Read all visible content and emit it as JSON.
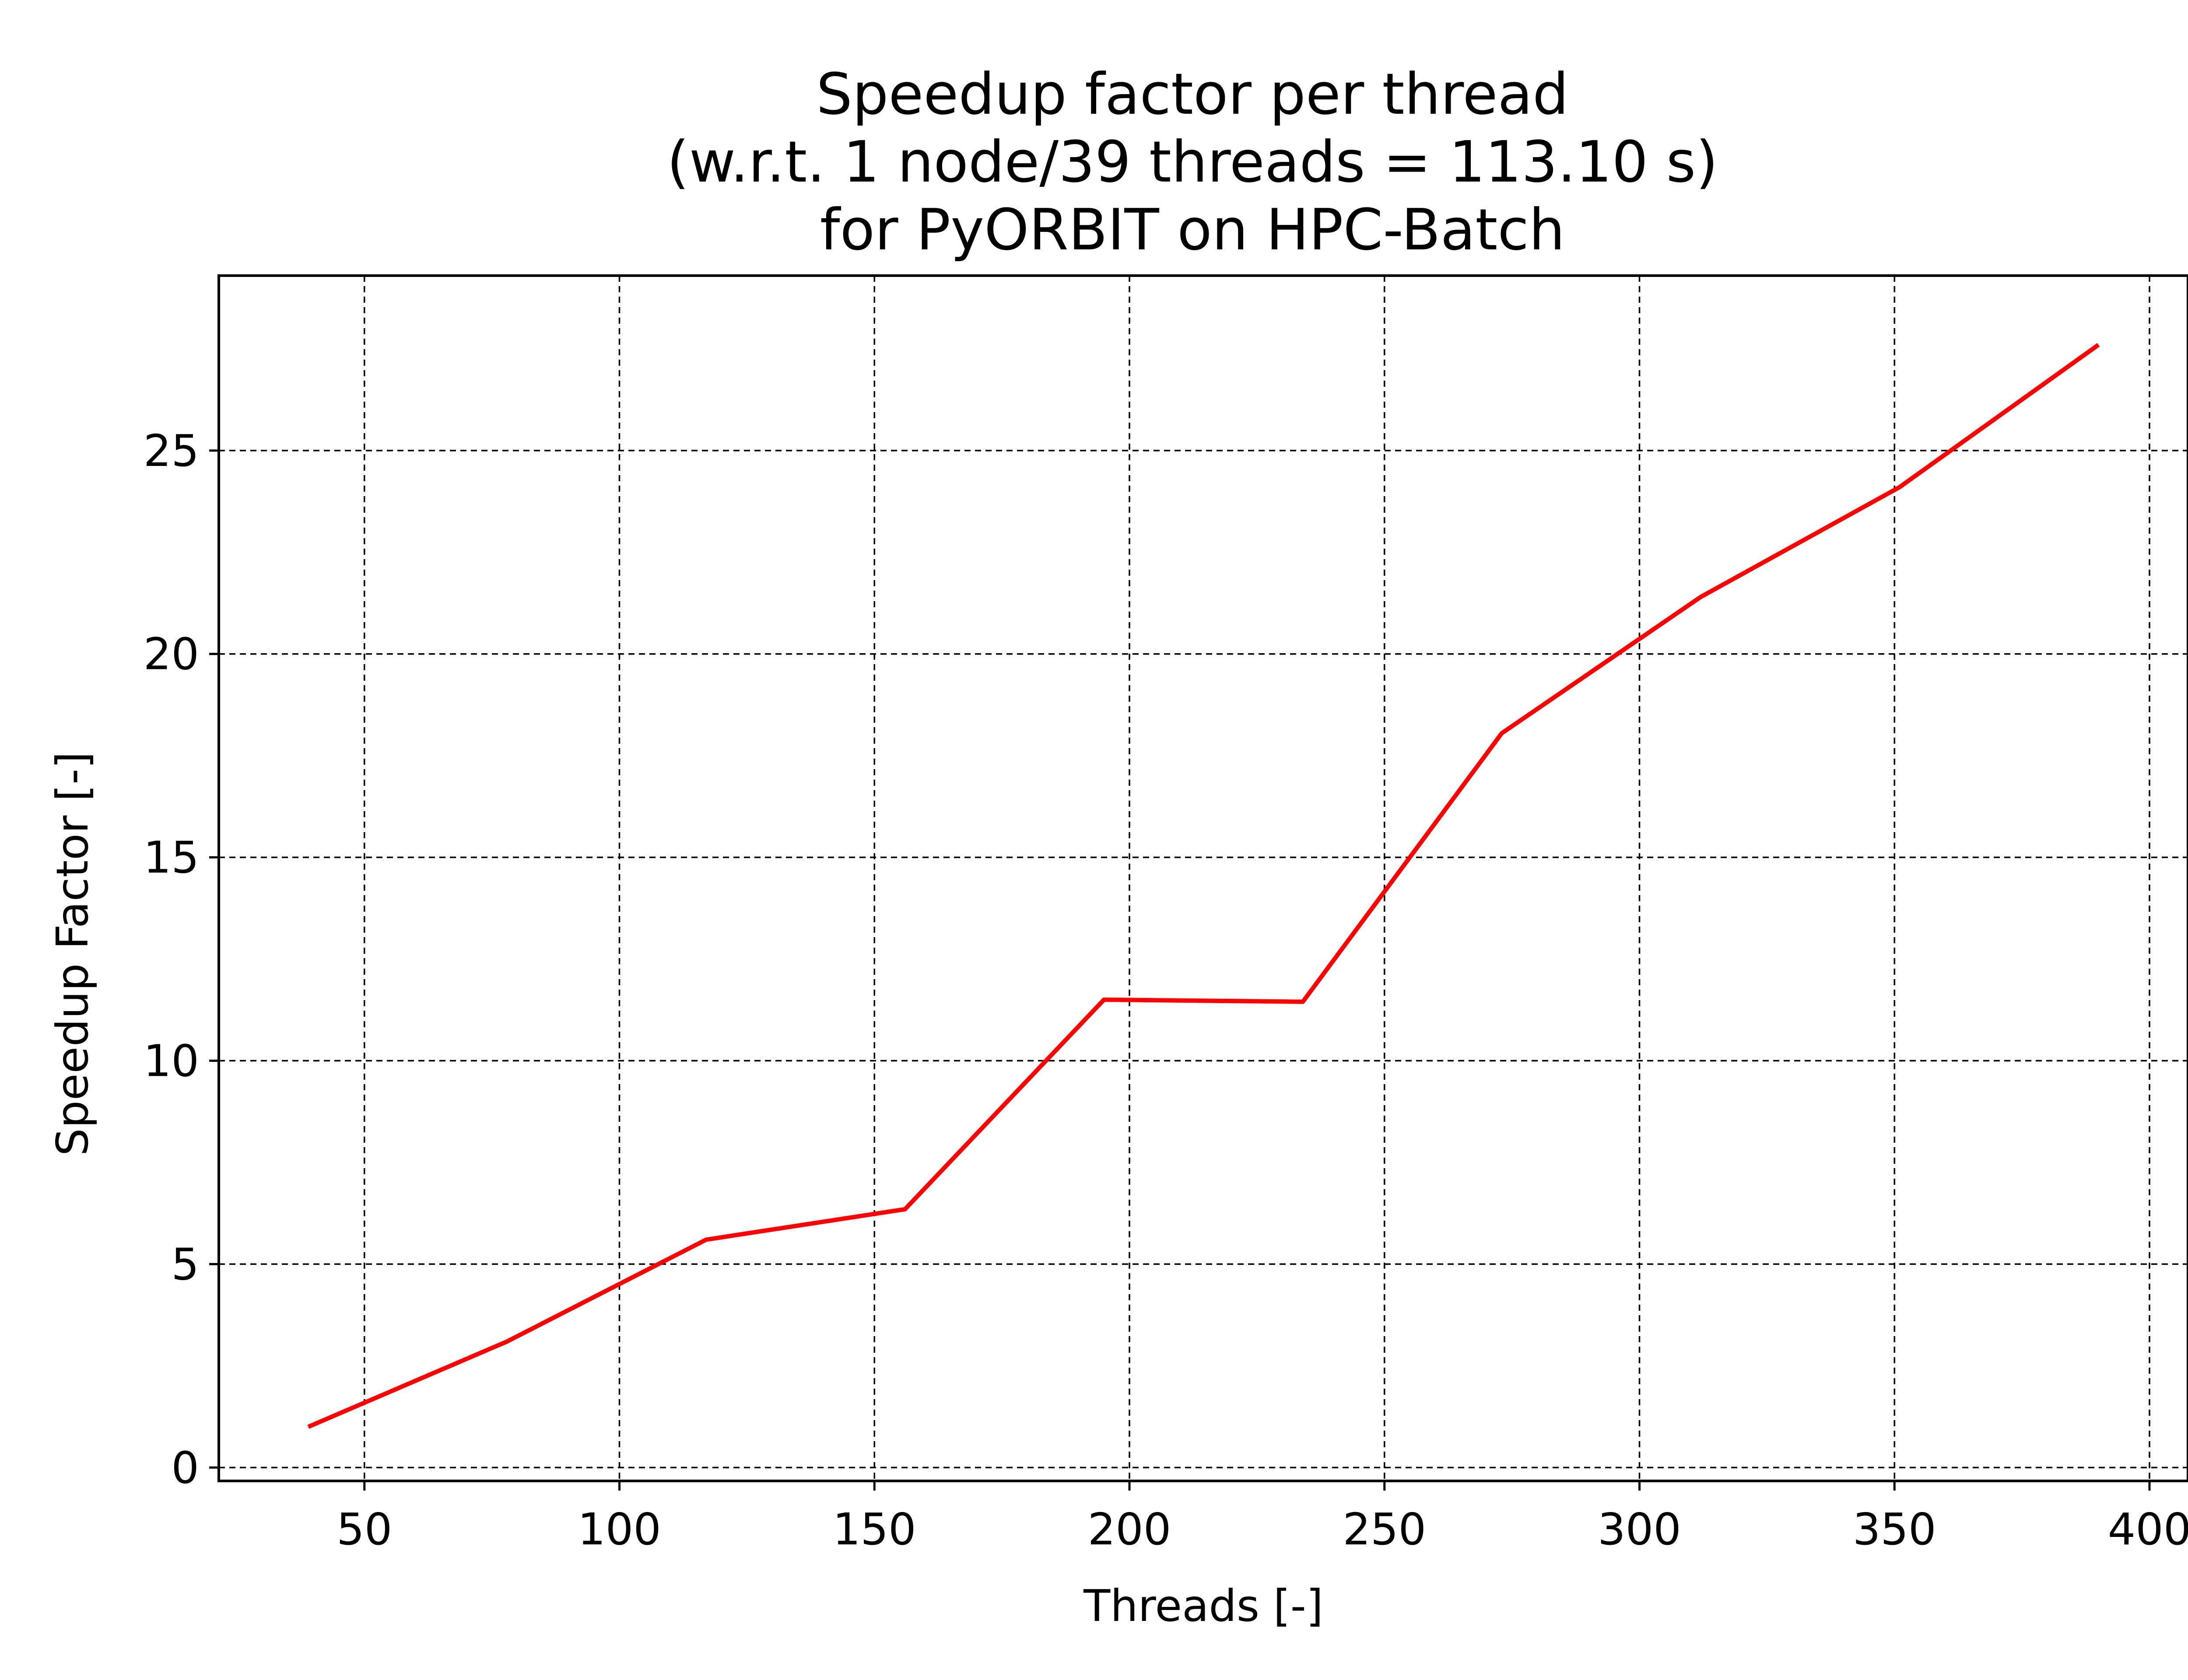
{
  "chart_data": {
    "type": "line",
    "title": [
      "Speedup factor per thread",
      "(w.r.t. 1 node/39 threads = 113.10 s)",
      "for PyORBIT on HPC-Batch"
    ],
    "xlabel": "Threads [-]",
    "ylabel": "Speedup Factor [-]",
    "xlim": [
      21.45,
      407.55
    ],
    "ylim": [
      -0.33,
      29.3
    ],
    "xticks": [
      50,
      100,
      150,
      200,
      250,
      300,
      350,
      400
    ],
    "yticks": [
      0,
      5,
      10,
      15,
      20,
      25
    ],
    "grid": true,
    "series": [
      {
        "color": "#ff0000",
        "x": [
          39,
          78,
          117,
          156,
          195,
          234,
          273,
          312,
          351,
          390
        ],
        "y": [
          1.0,
          3.1,
          5.6,
          6.35,
          11.5,
          11.45,
          18.05,
          21.4,
          24.1,
          27.6
        ]
      }
    ]
  }
}
